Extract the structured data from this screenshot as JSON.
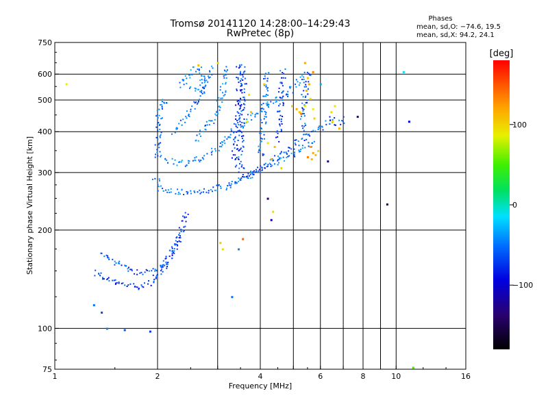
{
  "chart_data": {
    "type": "scatter",
    "title": "Tromsø 20141120 14:28:00–14:29:43",
    "subtitle": "RwPretec (8p)",
    "stats": {
      "heading": "Phases",
      "line_o": "mean, sd,O: −74.6, 19.5",
      "line_x": "mean, sd,X:  94.2, 24.1"
    },
    "xlabel": "Frequency [MHz]",
    "ylabel": "Stationary phase Virtual Height [km]",
    "x_scale": "log",
    "y_scale": "log",
    "xlim": [
      1,
      16
    ],
    "ylim": [
      75,
      750
    ],
    "x_ticks": [
      {
        "v": 1,
        "label": "1"
      },
      {
        "v": 2,
        "label": "2"
      },
      {
        "v": 3,
        "label": ""
      },
      {
        "v": 4,
        "label": "4"
      },
      {
        "v": 5,
        "label": ""
      },
      {
        "v": 6,
        "label": "6"
      },
      {
        "v": 7,
        "label": ""
      },
      {
        "v": 8,
        "label": "8"
      },
      {
        "v": 9,
        "label": ""
      },
      {
        "v": 10,
        "label": "10"
      },
      {
        "v": 16,
        "label": "16"
      }
    ],
    "y_ticks": [
      {
        "v": 75,
        "label": "75"
      },
      {
        "v": 100,
        "label": "100"
      },
      {
        "v": 200,
        "label": "200"
      },
      {
        "v": 300,
        "label": "300"
      },
      {
        "v": 400,
        "label": "400"
      },
      {
        "v": 500,
        "label": "500"
      },
      {
        "v": 600,
        "label": "600"
      },
      {
        "v": 750,
        "label": "750"
      }
    ],
    "grid": true,
    "colorbar": {
      "label": "[deg]",
      "range": [
        -180,
        180
      ],
      "ticks": [
        {
          "v": 100,
          "label": "100"
        },
        {
          "v": 0,
          "label": "0"
        },
        {
          "v": -100,
          "label": "−100"
        }
      ]
    },
    "traces": [
      {
        "kind": "x-trace",
        "phase": -95,
        "points": [
          [
            1.3,
            150
          ],
          [
            1.4,
            142
          ],
          [
            1.55,
            137
          ],
          [
            1.75,
            135
          ],
          [
            1.9,
            138
          ],
          [
            2.0,
            145
          ],
          [
            2.15,
            160
          ],
          [
            2.25,
            180
          ],
          [
            2.35,
            205
          ],
          [
            2.45,
            230
          ]
        ]
      },
      {
        "kind": "x-trace",
        "phase": -88,
        "points": [
          [
            1.35,
            170
          ],
          [
            1.5,
            160
          ],
          [
            1.7,
            150
          ],
          [
            1.9,
            148
          ],
          [
            2.05,
            155
          ],
          [
            2.2,
            175
          ],
          [
            2.3,
            195
          ]
        ]
      },
      {
        "kind": "o-trace",
        "phase": -82,
        "points": [
          [
            2.0,
            330
          ],
          [
            2.0,
            400
          ],
          [
            2.02,
            470
          ],
          [
            2.05,
            500
          ],
          [
            2.1,
            480
          ]
        ]
      },
      {
        "kind": "o-trace",
        "phase": -78,
        "points": [
          [
            1.95,
            290
          ],
          [
            2.05,
            265
          ],
          [
            2.3,
            262
          ],
          [
            2.6,
            262
          ],
          [
            2.9,
            268
          ],
          [
            3.2,
            272
          ],
          [
            3.5,
            285
          ],
          [
            3.8,
            300
          ],
          [
            4.2,
            318
          ],
          [
            4.6,
            332
          ],
          [
            5.0,
            345
          ],
          [
            5.4,
            360
          ],
          [
            5.8,
            380
          ]
        ]
      },
      {
        "kind": "o-trace",
        "phase": -85,
        "points": [
          [
            3.3,
            280
          ],
          [
            3.6,
            292
          ],
          [
            3.9,
            305
          ],
          [
            4.2,
            320
          ],
          [
            4.5,
            340
          ],
          [
            4.9,
            360
          ],
          [
            5.3,
            380
          ],
          [
            5.7,
            400
          ],
          [
            6.1,
            420
          ],
          [
            6.5,
            440
          ],
          [
            6.8,
            420
          ],
          [
            7.0,
            440
          ]
        ]
      },
      {
        "kind": "o-trace",
        "phase": -75,
        "points": [
          [
            2.1,
            330
          ],
          [
            2.4,
            320
          ],
          [
            2.7,
            335
          ],
          [
            3.0,
            360
          ],
          [
            3.2,
            390
          ],
          [
            3.5,
            420
          ],
          [
            3.8,
            450
          ],
          [
            4.2,
            480
          ],
          [
            4.6,
            510
          ],
          [
            5.0,
            550
          ],
          [
            5.4,
            610
          ]
        ]
      },
      {
        "kind": "o-trace",
        "phase": -70,
        "points": [
          [
            2.3,
            560
          ],
          [
            2.45,
            590
          ],
          [
            2.55,
            620
          ],
          [
            2.65,
            620
          ],
          [
            2.7,
            560
          ],
          [
            2.6,
            530
          ],
          [
            2.45,
            545
          ]
        ]
      },
      {
        "kind": "o-trace",
        "phase": -72,
        "points": [
          [
            2.6,
            380
          ],
          [
            2.8,
            420
          ],
          [
            3.0,
            470
          ],
          [
            3.1,
            540
          ],
          [
            3.15,
            640
          ]
        ]
      },
      {
        "kind": "o-trace",
        "phase": -90,
        "points": [
          [
            3.5,
            300
          ],
          [
            3.5,
            380
          ],
          [
            3.52,
            460
          ],
          [
            3.55,
            540
          ],
          [
            3.55,
            650
          ]
        ]
      },
      {
        "kind": "o-trace",
        "phase": -98,
        "points": [
          [
            3.35,
            320
          ],
          [
            3.4,
            420
          ],
          [
            3.45,
            520
          ],
          [
            3.45,
            650
          ]
        ]
      },
      {
        "kind": "o-trace",
        "phase": -80,
        "points": [
          [
            4.0,
            340
          ],
          [
            4.05,
            420
          ],
          [
            4.1,
            500
          ],
          [
            4.15,
            620
          ]
        ]
      },
      {
        "kind": "o-trace",
        "phase": -92,
        "points": [
          [
            4.5,
            380
          ],
          [
            4.55,
            470
          ],
          [
            4.6,
            560
          ],
          [
            4.65,
            630
          ]
        ]
      },
      {
        "kind": "o-trace",
        "phase": -86,
        "points": [
          [
            5.3,
            400
          ],
          [
            5.35,
            480
          ],
          [
            5.4,
            560
          ],
          [
            5.5,
            620
          ]
        ]
      },
      {
        "kind": "o-trace",
        "phase": -79,
        "points": [
          [
            2.2,
            400
          ],
          [
            2.35,
            430
          ],
          [
            2.5,
            470
          ],
          [
            2.7,
            520
          ],
          [
            2.8,
            600
          ],
          [
            2.9,
            640
          ]
        ]
      }
    ],
    "points": [
      [
        1.08,
        560,
        90
      ],
      [
        1.42,
        100,
        -75
      ],
      [
        1.6,
        99,
        -85
      ],
      [
        1.9,
        98,
        -95
      ],
      [
        1.3,
        118,
        -80
      ],
      [
        1.37,
        112,
        -90
      ],
      [
        3.05,
        183,
        110
      ],
      [
        3.1,
        175,
        100
      ],
      [
        3.55,
        188,
        150
      ],
      [
        3.45,
        175,
        -70
      ],
      [
        3.3,
        125,
        -80
      ],
      [
        4.2,
        250,
        -140
      ],
      [
        4.3,
        215,
        -120
      ],
      [
        4.35,
        228,
        100
      ],
      [
        6.3,
        325,
        -130
      ],
      [
        7.7,
        445,
        -130
      ],
      [
        9.4,
        240,
        -150
      ],
      [
        10.9,
        430,
        -110
      ],
      [
        11.2,
        76,
        40
      ],
      [
        10.5,
        610,
        -40
      ],
      [
        5.5,
        585,
        110
      ],
      [
        5.55,
        560,
        125
      ],
      [
        5.45,
        535,
        120
      ],
      [
        5.6,
        505,
        100
      ],
      [
        5.4,
        480,
        85
      ],
      [
        5.1,
        470,
        125
      ],
      [
        5.25,
        455,
        140
      ],
      [
        4.95,
        480,
        118
      ],
      [
        5.2,
        460,
        110
      ],
      [
        5.7,
        470,
        90
      ],
      [
        5.75,
        440,
        105
      ],
      [
        5.6,
        360,
        130
      ],
      [
        5.7,
        345,
        125
      ],
      [
        5.8,
        340,
        115
      ],
      [
        5.5,
        335,
        140
      ],
      [
        5.65,
        330,
        120
      ],
      [
        5.9,
        350,
        100
      ],
      [
        4.2,
        370,
        95
      ],
      [
        4.4,
        360,
        115
      ],
      [
        4.3,
        330,
        120
      ],
      [
        4.6,
        310,
        100
      ],
      [
        6.6,
        480,
        95
      ],
      [
        6.5,
        430,
        100
      ],
      [
        6.8,
        410,
        120
      ],
      [
        6.45,
        460,
        100
      ],
      [
        3.7,
        520,
        95
      ],
      [
        3.75,
        460,
        110
      ],
      [
        3.65,
        430,
        90
      ],
      [
        2.63,
        640,
        115
      ],
      [
        3.0,
        650,
        105
      ],
      [
        5.4,
        650,
        125
      ],
      [
        5.7,
        610,
        140
      ],
      [
        4.1,
        560,
        105
      ],
      [
        6.0,
        560,
        -60
      ]
    ]
  }
}
